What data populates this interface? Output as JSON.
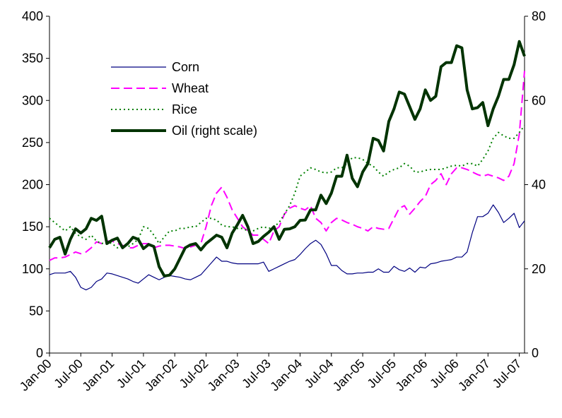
{
  "chart_data": {
    "type": "line",
    "categories": [
      "Jan-00",
      null,
      null,
      null,
      null,
      null,
      "Jul-00",
      null,
      null,
      null,
      null,
      null,
      "Jan-01",
      null,
      null,
      null,
      null,
      null,
      "Jul-01",
      null,
      null,
      null,
      null,
      null,
      "Jan-02",
      null,
      null,
      null,
      null,
      null,
      "Jul-02",
      null,
      null,
      null,
      null,
      null,
      "Jan-03",
      null,
      null,
      null,
      null,
      null,
      "Jul-03",
      null,
      null,
      null,
      null,
      null,
      "Jan-04",
      null,
      null,
      null,
      null,
      null,
      "Jul-04",
      null,
      null,
      null,
      null,
      null,
      "Jan-05",
      null,
      null,
      null,
      null,
      null,
      "Jul-05",
      null,
      null,
      null,
      null,
      null,
      "Jan-06",
      null,
      null,
      null,
      null,
      null,
      "Jul-06",
      null,
      null,
      null,
      null,
      null,
      "Jan-07",
      null,
      null,
      null,
      null,
      null,
      "Jul-07",
      null
    ],
    "series": [
      {
        "name": "Corn",
        "color": "#000080",
        "style": "solid",
        "width": 1.2,
        "values": [
          93,
          95,
          95,
          95,
          97,
          90,
          78,
          75,
          78,
          85,
          88,
          95,
          94,
          92,
          90,
          88,
          85,
          83,
          88,
          93,
          90,
          87,
          90,
          92,
          91,
          90,
          88,
          87,
          90,
          93,
          100,
          107,
          114,
          109,
          109,
          107,
          106,
          106,
          106,
          106,
          106,
          108,
          97,
          100,
          103,
          106,
          109,
          111,
          117,
          124,
          130,
          134,
          129,
          118,
          104,
          104,
          98,
          94,
          94,
          95,
          95,
          96,
          96,
          100,
          96,
          96,
          103,
          99,
          97,
          101,
          96,
          102,
          101,
          106,
          107,
          109,
          110,
          111,
          114,
          114,
          120,
          143,
          162,
          162,
          166,
          176,
          167,
          155,
          160,
          166,
          149,
          157
        ]
      },
      {
        "name": "Wheat",
        "color": "#ff00ff",
        "style": "dashed",
        "width": 2,
        "values": [
          110,
          113,
          113,
          114,
          117,
          120,
          118,
          120,
          125,
          132,
          130,
          133,
          133,
          130,
          128,
          125,
          125,
          128,
          130,
          130,
          125,
          127,
          128,
          128,
          127,
          126,
          124,
          126,
          128,
          130,
          150,
          175,
          190,
          197,
          185,
          170,
          160,
          150,
          145,
          140,
          140,
          135,
          130,
          145,
          150,
          165,
          172,
          175,
          172,
          170,
          175,
          160,
          155,
          145,
          155,
          160,
          158,
          155,
          153,
          150,
          148,
          145,
          150,
          148,
          147,
          148,
          160,
          172,
          175,
          165,
          172,
          180,
          186,
          200,
          205,
          213,
          200,
          213,
          220,
          220,
          218,
          215,
          212,
          210,
          212,
          210,
          208,
          205,
          210,
          225,
          260,
          335
        ]
      },
      {
        "name": "Rice",
        "color": "#008000",
        "style": "dotted",
        "width": 2,
        "values": [
          160,
          155,
          150,
          145,
          150,
          142,
          138,
          135,
          140,
          133,
          130,
          132,
          130,
          125,
          128,
          126,
          130,
          135,
          150,
          148,
          140,
          130,
          138,
          145,
          145,
          148,
          148,
          150,
          150,
          155,
          160,
          160,
          158,
          152,
          150,
          150,
          148,
          148,
          145,
          145,
          148,
          150,
          148,
          150,
          155,
          165,
          175,
          190,
          210,
          215,
          220,
          218,
          215,
          214,
          215,
          220,
          220,
          225,
          232,
          232,
          230,
          225,
          222,
          215,
          210,
          215,
          218,
          220,
          225,
          222,
          215,
          215,
          217,
          218,
          218,
          218,
          220,
          222,
          223,
          222,
          225,
          225,
          222,
          230,
          240,
          255,
          262,
          258,
          255,
          255,
          262,
          270
        ]
      },
      {
        "name": "Oil (right scale)",
        "color": "#003300",
        "style": "solid",
        "width": 4,
        "axis": "y2",
        "values": [
          25,
          27,
          27.5,
          23.5,
          27,
          29.5,
          28.5,
          29.5,
          32,
          31.5,
          32.5,
          26,
          26.8,
          27.3,
          25,
          26,
          27.5,
          27,
          24.8,
          25.8,
          25.3,
          20.5,
          18.3,
          18.5,
          20,
          22.5,
          25,
          25.7,
          26,
          24.5,
          26,
          27,
          28,
          27.5,
          25,
          28.5,
          30.5,
          32.7,
          30,
          26,
          26.5,
          27.7,
          28.7,
          30,
          27,
          29.4,
          29.5,
          30,
          31.5,
          31.6,
          34,
          34,
          37.5,
          35.5,
          38,
          42,
          42,
          47,
          41.5,
          39.5,
          43,
          45,
          51,
          50.5,
          48,
          55,
          58,
          62,
          61.5,
          58.5,
          55.5,
          58,
          62.5,
          60,
          61,
          68,
          69,
          69,
          73,
          72.5,
          62.5,
          58,
          58.3,
          59.5,
          54,
          58,
          61,
          65,
          65,
          68.5,
          74,
          70.5
        ]
      }
    ],
    "ylim": [
      0,
      400
    ],
    "yticks": [
      0,
      50,
      100,
      150,
      200,
      250,
      300,
      350,
      400
    ],
    "y2lim": [
      0,
      80
    ],
    "y2ticks": [
      0,
      20,
      40,
      60,
      80
    ],
    "grid": false,
    "legend": "top-left"
  }
}
